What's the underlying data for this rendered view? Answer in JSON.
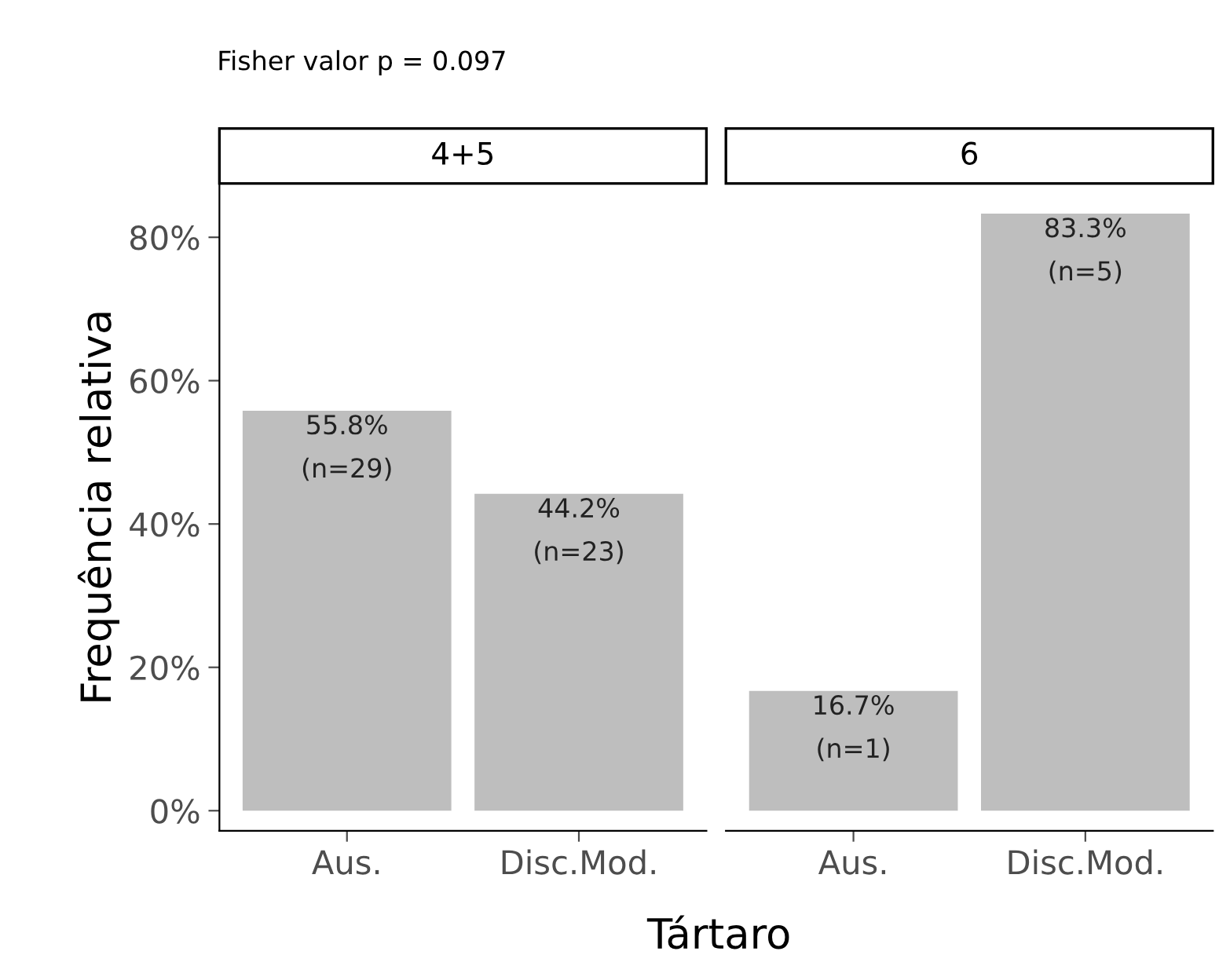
{
  "chart_data": [
    {
      "type": "bar",
      "title": "Fisher valor p = 0.097",
      "subtitle": "4+5",
      "ylabel": "Frequência relativa",
      "xlabel": "Tártaro",
      "categories": [
        "Aus.",
        "Disc.Mod."
      ],
      "values": [
        55.8,
        44.2
      ],
      "value_labels": [
        "55.8%\n(n=29)",
        "44.2%\n(n=23)"
      ],
      "color": "#bebebe",
      "ylim": [
        -2.8,
        87.5
      ],
      "yticks": [
        {
          "value": 0,
          "label": "0%"
        },
        {
          "value": 20,
          "label": "20%"
        },
        {
          "value": 40,
          "label": "40%"
        },
        {
          "value": 60,
          "label": "60%"
        },
        {
          "value": 80,
          "label": "80%"
        }
      ],
      "grid": false,
      "legend": false
    },
    {
      "type": "bar",
      "subtitle": "6",
      "categories": [
        "Aus.",
        "Disc.Mod."
      ],
      "values": [
        16.7,
        83.3
      ],
      "value_labels": [
        "16.7%\n(n=1)",
        "83.3%\n(n=5)"
      ],
      "color": "#bebebe",
      "tick_labels": "x",
      "grid": false,
      "legend": false
    }
  ]
}
